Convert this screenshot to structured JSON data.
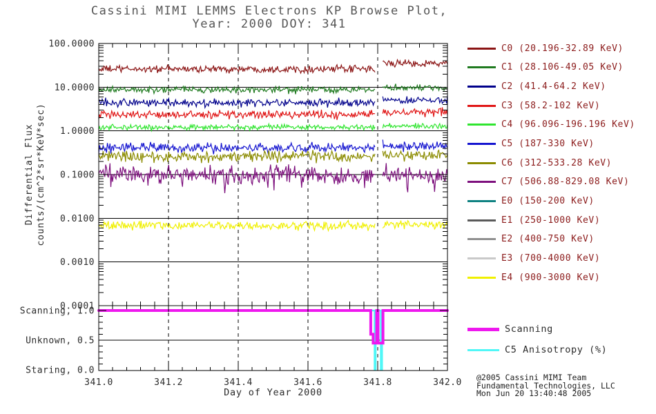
{
  "title": {
    "line1": "Cassini MIMI LEMMS Electrons KP Browse Plot,",
    "line2": "Year: 2000 DOY: 341"
  },
  "axes": {
    "y_label_line1": "Differential Flux",
    "y_label_line2": "counts/(cm^2*sr*KeV*sec)",
    "x_label": "Day of Year 2000",
    "y_ticks": [
      {
        "label": "100.0000",
        "value": 100
      },
      {
        "label": "10.0000",
        "value": 10
      },
      {
        "label": "1.0000",
        "value": 1
      },
      {
        "label": "0.1000",
        "value": 0.1
      },
      {
        "label": "0.0100",
        "value": 0.01
      },
      {
        "label": "0.0010",
        "value": 0.001
      },
      {
        "label": "0.0001",
        "value": 0.0001
      }
    ],
    "x_ticks": [
      {
        "label": "341.0",
        "value": 341.0
      },
      {
        "label": "341.2",
        "value": 341.2
      },
      {
        "label": "341.4",
        "value": 341.4
      },
      {
        "label": "341.6",
        "value": 341.6
      },
      {
        "label": "341.8",
        "value": 341.8
      },
      {
        "label": "342.0",
        "value": 342.0
      }
    ],
    "state_ticks": [
      {
        "label": "Scanning, 1.0",
        "value": 1.0
      },
      {
        "label": "Unknown, 0.5",
        "value": 0.5
      },
      {
        "label": "Staring, 0.0",
        "value": 0.0
      }
    ]
  },
  "chart_data": {
    "type": "line",
    "title": "Cassini MIMI LEMMS Electrons KP Browse Plot, Year: 2000 DOY: 341",
    "xlabel": "Day of Year 2000",
    "ylabel": "Differential Flux counts/(cm^2*sr*KeV*sec)",
    "x_range": [
      341.0,
      342.0
    ],
    "y_scale": "log",
    "y_range": [
      0.0001,
      100
    ],
    "x_gridlines": [
      341.2,
      341.4,
      341.6,
      341.8
    ],
    "y_gridline_decades": [
      10,
      1,
      0.1,
      0.01,
      0.001
    ],
    "data_gap_x": [
      341.793,
      341.812
    ],
    "series": [
      {
        "name": "C0",
        "label": "C0 (20.196-32.89 KeV)",
        "color": "#8B1414",
        "mean_flux": 26,
        "end_rise_dex": 0.13,
        "noise_dex": 0.045,
        "plotted": true,
        "spiky": false
      },
      {
        "name": "C1",
        "label": "C1 (28.106-49.05 KeV)",
        "color": "#1F7A1F",
        "mean_flux": 8.7,
        "end_rise_dex": 0.05,
        "noise_dex": 0.04,
        "plotted": true,
        "spiky": false
      },
      {
        "name": "C2",
        "label": "C2 (41.4-64.2 KeV)",
        "color": "#00008B",
        "mean_flux": 4.4,
        "end_rise_dex": 0.06,
        "noise_dex": 0.05,
        "plotted": true,
        "spiky": false
      },
      {
        "name": "C3",
        "label": "C3 (58.2-102 KeV)",
        "color": "#E01414",
        "mean_flux": 2.36,
        "end_rise_dex": 0.05,
        "noise_dex": 0.05,
        "plotted": true,
        "spiky": false
      },
      {
        "name": "C4",
        "label": "C4 (96.096-196.196 KeV)",
        "color": "#2FE52F",
        "mean_flux": 1.22,
        "end_rise_dex": 0.02,
        "noise_dex": 0.035,
        "plotted": true,
        "spiky": false
      },
      {
        "name": "C5",
        "label": "C5 (187-330 KeV)",
        "color": "#1515D0",
        "mean_flux": 0.41,
        "end_rise_dex": 0.03,
        "noise_dex": 0.06,
        "plotted": true,
        "spiky": false
      },
      {
        "name": "C6",
        "label": "C6 (312-533.28 KeV)",
        "color": "#8B8B00",
        "mean_flux": 0.26,
        "end_rise_dex": 0.04,
        "noise_dex": 0.07,
        "plotted": true,
        "spiky": false
      },
      {
        "name": "C7",
        "label": "C7 (506.88-829.08 KeV)",
        "color": "#7D107D",
        "mean_flux": 0.1,
        "end_rise_dex": 0.0,
        "noise_dex": 0.11,
        "plotted": true,
        "spiky": true
      },
      {
        "name": "E0",
        "label": "E0 (150-200 KeV)",
        "color": "#0F8282",
        "plotted": false
      },
      {
        "name": "E1",
        "label": "E1 (250-1000 KeV)",
        "color": "#5A5A5A",
        "plotted": false
      },
      {
        "name": "E2",
        "label": "E2 (400-750 KeV)",
        "color": "#8F8F8F",
        "plotted": false
      },
      {
        "name": "E3",
        "label": "E3 (700-4000 KeV)",
        "color": "#C9C9C9",
        "plotted": false
      },
      {
        "name": "E4",
        "label": "E4 (900-3000 KeV)",
        "color": "#F0F000",
        "mean_flux": 0.0068,
        "end_rise_dex": 0.02,
        "noise_dex": 0.055,
        "plotted": true,
        "spiky": false
      }
    ],
    "state_panel": {
      "y_range": [
        0.0,
        1.0
      ],
      "scanning_label": "Scanning",
      "scanning_color": "#EE18EE",
      "scanning_path": [
        [
          341.0,
          1.0
        ],
        [
          341.78,
          1.0
        ],
        [
          341.78,
          0.6
        ],
        [
          341.787,
          0.6
        ],
        [
          341.787,
          0.45
        ],
        [
          341.797,
          0.45
        ],
        [
          341.797,
          1.0
        ],
        [
          341.801,
          1.0
        ],
        [
          341.801,
          0.45
        ],
        [
          341.815,
          0.45
        ],
        [
          341.815,
          1.0
        ],
        [
          342.0,
          1.0
        ]
      ],
      "anisotropy_label": "C5 Anisotropy (%)",
      "anisotropy_color": "#50F7F7",
      "anisotropy_path": [
        [
          341.0,
          1.0
        ],
        [
          341.791,
          1.0
        ],
        [
          341.791,
          0.0
        ],
        [
          341.794,
          0.0
        ],
        [
          341.794,
          1.0
        ],
        [
          341.809,
          1.0
        ],
        [
          341.809,
          0.0
        ],
        [
          341.8125,
          0.0
        ],
        [
          341.8125,
          1.0
        ],
        [
          342.0,
          1.0
        ]
      ]
    }
  },
  "footer": {
    "line1": "@2005 Cassini MIMI Team",
    "line2": "Fundamental Technologies, LLC",
    "line3": "Mon Jun 20 13:40:48 2005"
  }
}
